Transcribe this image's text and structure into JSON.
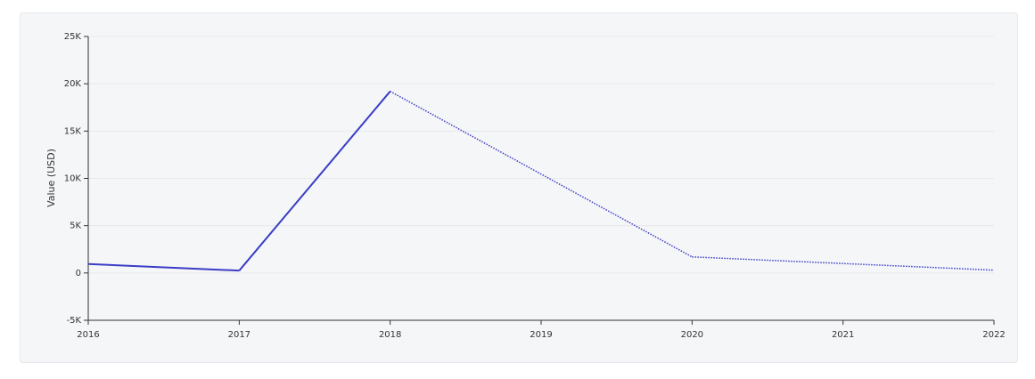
{
  "chart_data": {
    "type": "line",
    "y_label": "Value (USD)",
    "x": [
      2016,
      2017,
      2018,
      2020,
      2022
    ],
    "series": [
      {
        "color": "#3a3dc4",
        "values": [
          950,
          250,
          19200,
          1700,
          300
        ]
      }
    ],
    "segment_styles": [
      "solid",
      "solid",
      "dotted",
      "dotted"
    ],
    "xlim": [
      2016,
      2022
    ],
    "xticks": [
      2016,
      2017,
      2018,
      2019,
      2020,
      2021,
      2022
    ],
    "ylim": [
      -5000,
      25000
    ],
    "yticks": [
      {
        "value": -5000,
        "label": "-5K"
      },
      0,
      {
        "value": 5000,
        "label": "5K"
      },
      {
        "value": 10000,
        "label": "10K"
      },
      {
        "value": 15000,
        "label": "15K"
      },
      {
        "value": 20000,
        "label": "20K"
      },
      {
        "value": 25000,
        "label": "25K"
      }
    ],
    "grid": true
  }
}
